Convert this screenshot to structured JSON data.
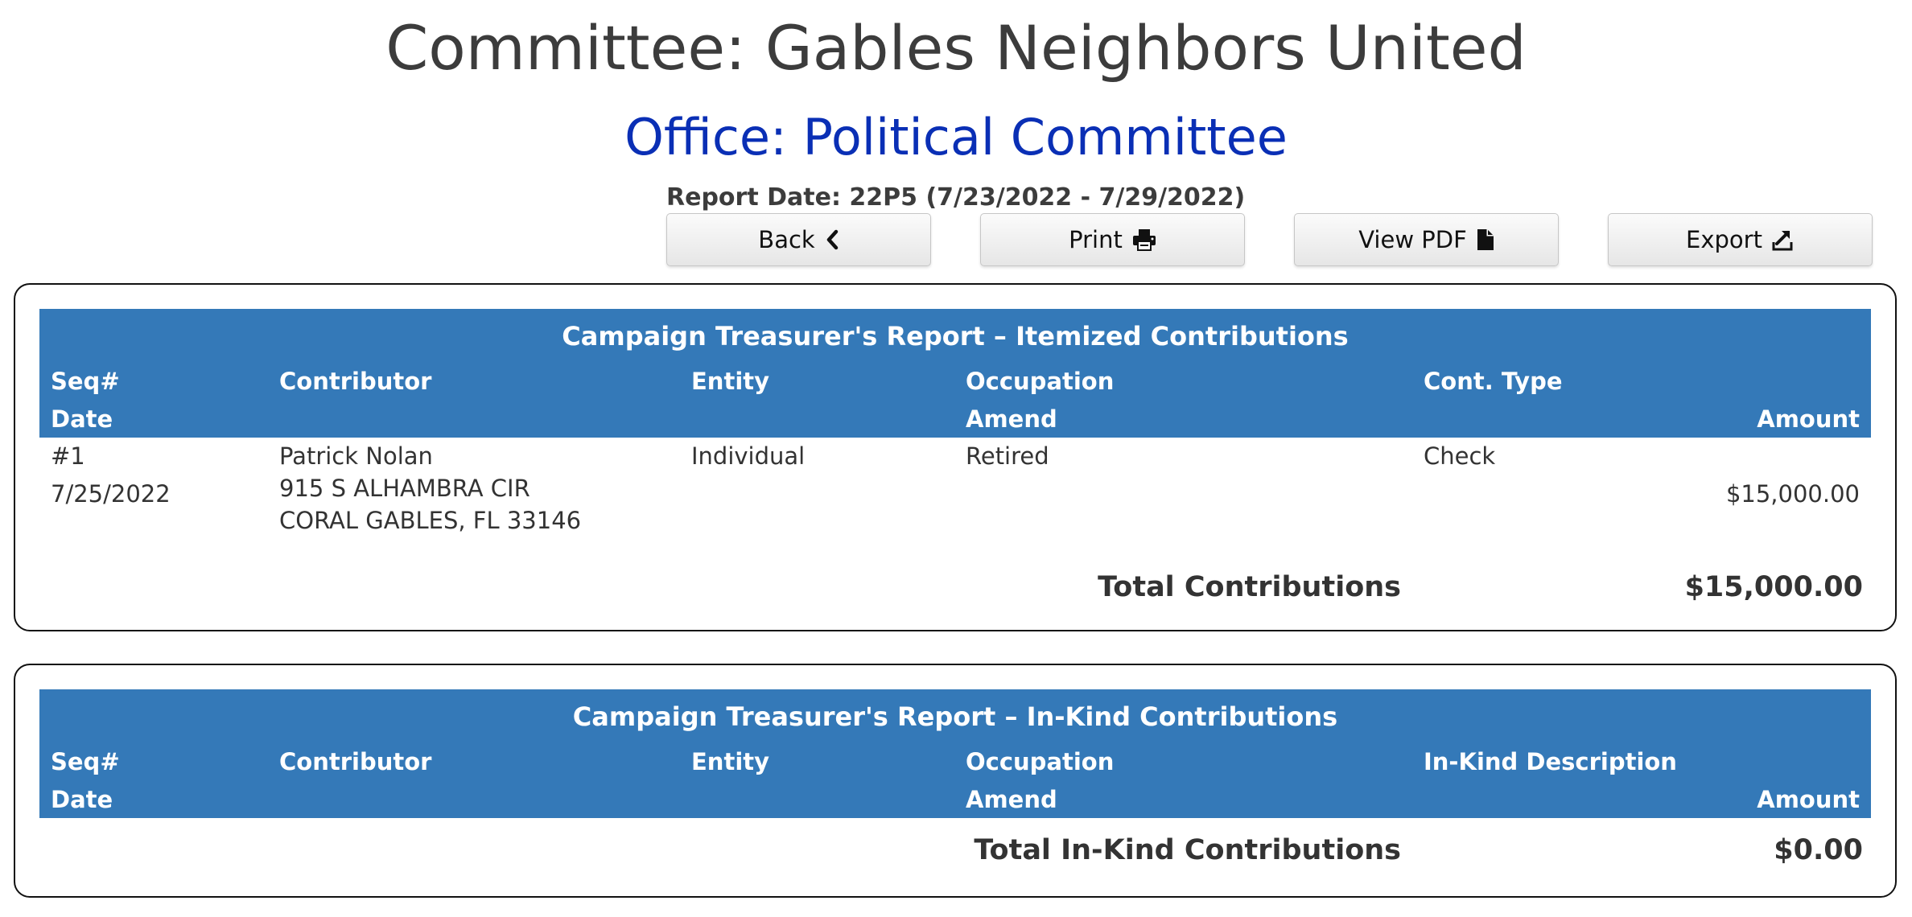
{
  "header": {
    "committee": "Committee: Gables Neighbors United",
    "office": "Office: Political Committee",
    "report_date": "Report Date: 22P5 (7/23/2022 - 7/29/2022)"
  },
  "toolbar": {
    "back_label": "Back",
    "print_label": "Print",
    "view_pdf_label": "View PDF",
    "export_label": "Export"
  },
  "itemized": {
    "caption": "Campaign Treasurer's Report – Itemized Contributions",
    "columns": {
      "seq": "Seq#",
      "date": "Date",
      "contributor": "Contributor",
      "entity": "Entity",
      "occupation": "Occupation",
      "amend": "Amend",
      "cont_type": "Cont. Type",
      "amount": "Amount"
    },
    "rows": [
      {
        "seq": "#1",
        "date": "7/25/2022",
        "contributor_name": "Patrick Nolan",
        "address1": "915 S ALHAMBRA CIR",
        "address2": "CORAL GABLES, FL 33146",
        "entity": "Individual",
        "occupation": "Retired",
        "cont_type": "Check",
        "amount": "$15,000.00"
      }
    ],
    "total_label": "Total Contributions",
    "total_value": "$15,000.00"
  },
  "inkind": {
    "caption": "Campaign Treasurer's Report – In-Kind Contributions",
    "columns": {
      "seq": "Seq#",
      "date": "Date",
      "contributor": "Contributor",
      "entity": "Entity",
      "occupation": "Occupation",
      "amend": "Amend",
      "description": "In-Kind Description",
      "amount": "Amount"
    },
    "total_label": "Total In-Kind Contributions",
    "total_value": "$0.00"
  },
  "icons": {
    "back": "chevron-left-icon",
    "print": "printer-icon",
    "pdf": "file-icon",
    "export": "export-icon"
  }
}
